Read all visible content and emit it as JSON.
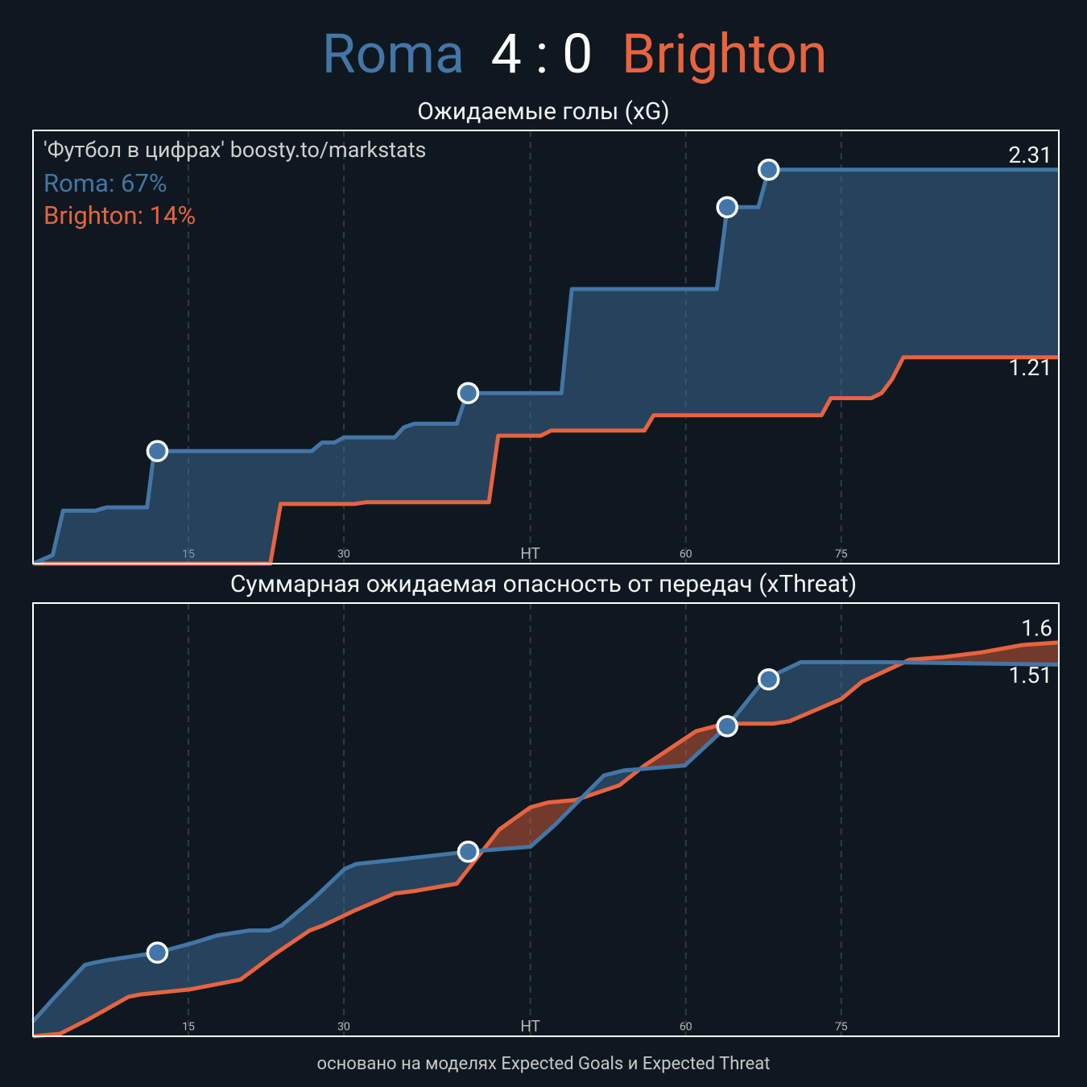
{
  "header": {
    "home": "Roma",
    "score": "4 : 0",
    "away": "Brighton"
  },
  "chart_data": [
    {
      "type": "line",
      "title": "Ожидаемые голы (xG)",
      "note": "'Футбол в цифрах' boosty.to/markstats",
      "probabilities": [
        "Roma: 67%",
        "Brighton: 14%"
      ],
      "xlim": [
        0,
        99
      ],
      "ylim": [
        0,
        2.54
      ],
      "xticks": [
        15,
        30,
        {
          "value": 48,
          "label": "HT"
        },
        {
          "value": 63,
          "label": "60"
        },
        {
          "value": 78,
          "label": "75"
        }
      ],
      "grid": true,
      "series": [
        {
          "name": "Roma",
          "color": "#4376a6",
          "x": [
            0,
            1.9,
            2.9,
            6.0,
            7.1,
            11.0,
            11.7,
            26.9,
            27.9,
            29.1,
            30.0,
            34.9,
            35.8,
            36.8,
            40.9,
            41.9,
            51.0,
            52.0,
            66.0,
            67.0,
            70.0,
            71.0,
            99
          ],
          "y": [
            0,
            0.05,
            0.31,
            0.31,
            0.33,
            0.33,
            0.66,
            0.66,
            0.71,
            0.71,
            0.74,
            0.74,
            0.8,
            0.82,
            0.82,
            1.0,
            1.0,
            1.61,
            1.61,
            2.09,
            2.09,
            2.31,
            2.31
          ]
        },
        {
          "name": "Brighton",
          "color": "#e8633f",
          "x": [
            0,
            22.9,
            23.9,
            31.0,
            32.2,
            44.0,
            44.9,
            49.0,
            50.0,
            59.0,
            59.9,
            76.1,
            77.0,
            80.9,
            81.9,
            82.9,
            84.0,
            99
          ],
          "y": [
            0,
            0,
            0.35,
            0.35,
            0.36,
            0.36,
            0.75,
            0.75,
            0.78,
            0.78,
            0.87,
            0.87,
            0.97,
            0.97,
            1.0,
            1.08,
            1.21,
            1.21
          ]
        }
      ],
      "goals": {
        "x": [
          12.0,
          42.0,
          67.0,
          71.0
        ],
        "y": [
          0.66,
          1.0,
          2.09,
          2.31
        ]
      }
    },
    {
      "type": "line",
      "title": "Суммарная ожидаемая опасность от передач (xThreat)",
      "xlim": [
        0,
        99
      ],
      "ylim": [
        0,
        1.76
      ],
      "xticks": [
        15,
        30,
        {
          "value": 48,
          "label": "HT"
        },
        {
          "value": 63,
          "label": "60"
        },
        {
          "value": 78,
          "label": "75"
        }
      ],
      "grid": true,
      "series": [
        {
          "name": "Roma",
          "color": "#4376a6",
          "x": [
            0,
            1.9,
            5.0,
            6.0,
            7.3,
            12.0,
            15.5,
            17.8,
            20.9,
            22.8,
            24.0,
            27.1,
            30.1,
            31.2,
            35.7,
            42.0,
            48.0,
            50.4,
            55.1,
            57.0,
            62.9,
            67.0,
            70.6,
            74.1,
            82.3,
            99
          ],
          "y": [
            0.06,
            0.15,
            0.29,
            0.3,
            0.31,
            0.34,
            0.38,
            0.41,
            0.43,
            0.43,
            0.45,
            0.56,
            0.68,
            0.7,
            0.72,
            0.75,
            0.77,
            0.86,
            1.06,
            1.08,
            1.1,
            1.26,
            1.45,
            1.52,
            1.52,
            1.51
          ]
        },
        {
          "name": "Brighton",
          "color": "#e8633f",
          "x": [
            0,
            2.6,
            5.4,
            9.2,
            10.4,
            15.1,
            20.0,
            23.2,
            26.7,
            28.0,
            31.0,
            34.9,
            36.8,
            40.9,
            45.0,
            48.0,
            49.7,
            52.4,
            56.6,
            59.0,
            64.0,
            66.8,
            71.4,
            73.0,
            78.0,
            80.0,
            84.6,
            87.7,
            91.6,
            95.5,
            99
          ],
          "y": [
            0,
            0.01,
            0.07,
            0.16,
            0.17,
            0.19,
            0.23,
            0.33,
            0.43,
            0.45,
            0.51,
            0.58,
            0.59,
            0.62,
            0.84,
            0.93,
            0.95,
            0.96,
            1.02,
            1.1,
            1.24,
            1.27,
            1.27,
            1.28,
            1.37,
            1.44,
            1.53,
            1.54,
            1.56,
            1.59,
            1.6
          ]
        }
      ],
      "goals": {
        "x": [
          12.0,
          42.0,
          67.0,
          71.0
        ],
        "y": [
          0.34,
          0.75,
          1.26,
          1.45
        ]
      }
    }
  ],
  "footer": "основано на моделях Expected Goals и Expected Threat"
}
